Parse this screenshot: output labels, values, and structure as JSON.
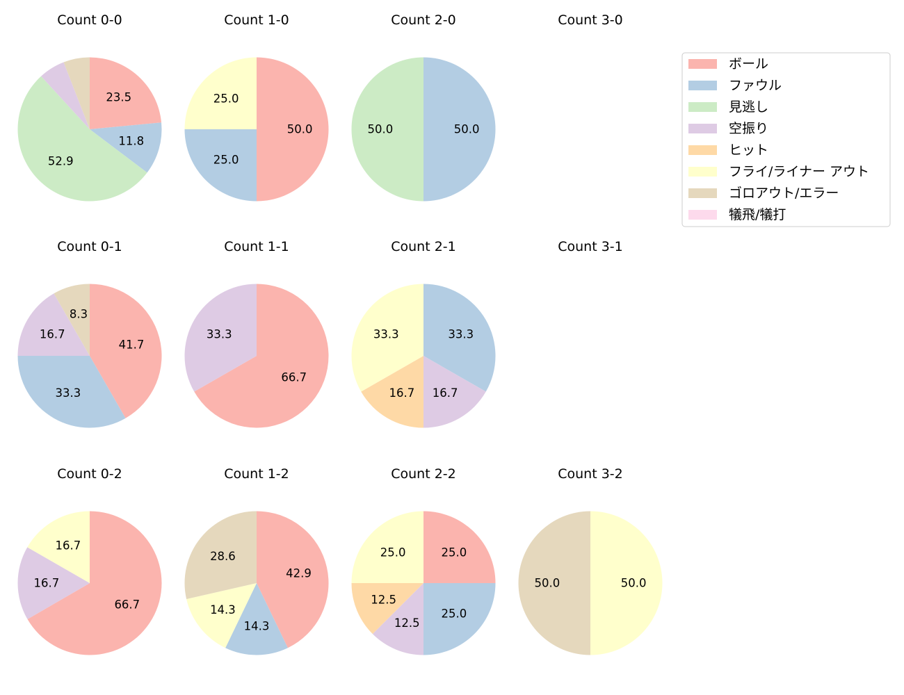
{
  "chart_data": {
    "type": "pie",
    "legend": {
      "placement": "top-right",
      "entries": [
        {
          "name": "ボール",
          "color": "#fbb4ae"
        },
        {
          "name": "ファウル",
          "color": "#b3cde3"
        },
        {
          "name": "見逃し",
          "color": "#ccebc5"
        },
        {
          "name": "空振り",
          "color": "#decbe4"
        },
        {
          "name": "ヒット",
          "color": "#fed9a6"
        },
        {
          "name": "フライ/ライナー アウト",
          "color": "#ffffcc"
        },
        {
          "name": "ゴロアウト/エラー",
          "color": "#e5d8bd"
        },
        {
          "name": "犠飛/犠打",
          "color": "#fddaec"
        }
      ]
    },
    "pies": [
      {
        "title": "Count 0-0",
        "row": 0,
        "col": 0,
        "slices": [
          {
            "category": "ボール",
            "value": 23.5
          },
          {
            "category": "ファウル",
            "value": 11.8
          },
          {
            "category": "見逃し",
            "value": 52.9
          },
          {
            "category": "空振り",
            "value": 5.9
          },
          {
            "category": "ゴロアウト/エラー",
            "value": 5.9
          }
        ]
      },
      {
        "title": "Count 1-0",
        "row": 0,
        "col": 1,
        "slices": [
          {
            "category": "ボール",
            "value": 50.0
          },
          {
            "category": "ファウル",
            "value": 25.0
          },
          {
            "category": "フライ/ライナー アウト",
            "value": 25.0
          }
        ]
      },
      {
        "title": "Count 2-0",
        "row": 0,
        "col": 2,
        "slices": [
          {
            "category": "ファウル",
            "value": 50.0
          },
          {
            "category": "見逃し",
            "value": 50.0
          }
        ]
      },
      {
        "title": "Count 3-0",
        "row": 0,
        "col": 3,
        "slices": []
      },
      {
        "title": "Count 0-1",
        "row": 1,
        "col": 0,
        "slices": [
          {
            "category": "ボール",
            "value": 41.7
          },
          {
            "category": "ファウル",
            "value": 33.3
          },
          {
            "category": "空振り",
            "value": 16.7
          },
          {
            "category": "ゴロアウト/エラー",
            "value": 8.3
          }
        ]
      },
      {
        "title": "Count 1-1",
        "row": 1,
        "col": 1,
        "slices": [
          {
            "category": "ボール",
            "value": 66.7
          },
          {
            "category": "空振り",
            "value": 33.3
          }
        ]
      },
      {
        "title": "Count 2-1",
        "row": 1,
        "col": 2,
        "slices": [
          {
            "category": "ファウル",
            "value": 33.3
          },
          {
            "category": "空振り",
            "value": 16.7
          },
          {
            "category": "ヒット",
            "value": 16.7
          },
          {
            "category": "フライ/ライナー アウト",
            "value": 33.3
          }
        ]
      },
      {
        "title": "Count 3-1",
        "row": 1,
        "col": 3,
        "slices": []
      },
      {
        "title": "Count 0-2",
        "row": 2,
        "col": 0,
        "slices": [
          {
            "category": "ボール",
            "value": 66.7
          },
          {
            "category": "空振り",
            "value": 16.7
          },
          {
            "category": "フライ/ライナー アウト",
            "value": 16.7
          }
        ]
      },
      {
        "title": "Count 1-2",
        "row": 2,
        "col": 1,
        "slices": [
          {
            "category": "ボール",
            "value": 42.9
          },
          {
            "category": "ファウル",
            "value": 14.3
          },
          {
            "category": "フライ/ライナー アウト",
            "value": 14.3
          },
          {
            "category": "ゴロアウト/エラー",
            "value": 28.6
          }
        ]
      },
      {
        "title": "Count 2-2",
        "row": 2,
        "col": 2,
        "slices": [
          {
            "category": "ボール",
            "value": 25.0
          },
          {
            "category": "ファウル",
            "value": 25.0
          },
          {
            "category": "空振り",
            "value": 12.5
          },
          {
            "category": "ヒット",
            "value": 12.5
          },
          {
            "category": "フライ/ライナー アウト",
            "value": 25.0
          }
        ]
      },
      {
        "title": "Count 3-2",
        "row": 2,
        "col": 3,
        "slices": [
          {
            "category": "フライ/ライナー アウト",
            "value": 50.0
          },
          {
            "category": "ゴロアウト/エラー",
            "value": 50.0
          }
        ]
      }
    ]
  }
}
